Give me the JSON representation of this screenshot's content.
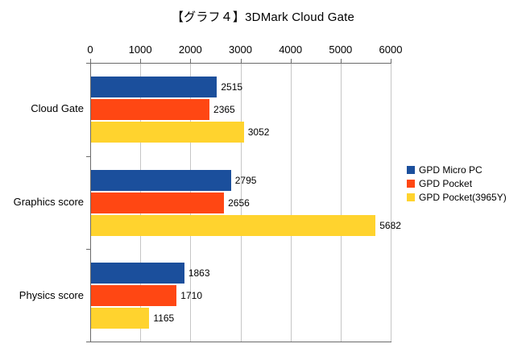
{
  "title": "【グラフ４】3DMark Cloud Gate",
  "chart_data": {
    "type": "bar",
    "orientation": "horizontal",
    "title": "【グラフ４】3DMark Cloud Gate",
    "categories": [
      "Cloud Gate",
      "Graphics score",
      "Physics score"
    ],
    "series": [
      {
        "name": "GPD Micro PC",
        "color": "#1b4f9c",
        "values": [
          2515,
          2795,
          1863
        ]
      },
      {
        "name": "GPD Pocket",
        "color": "#ff4713",
        "values": [
          2365,
          2656,
          1710
        ]
      },
      {
        "name": "GPD Pocket(3965Y)",
        "color": "#ffd32e",
        "values": [
          3052,
          5682,
          1165
        ]
      }
    ],
    "xlim": [
      0,
      6000
    ],
    "tick_step": 1000,
    "ticks": [
      "0",
      "1000",
      "2000",
      "3000",
      "4000",
      "5000",
      "6000"
    ],
    "grid": true,
    "legend_position": "right",
    "value_labels": true
  }
}
